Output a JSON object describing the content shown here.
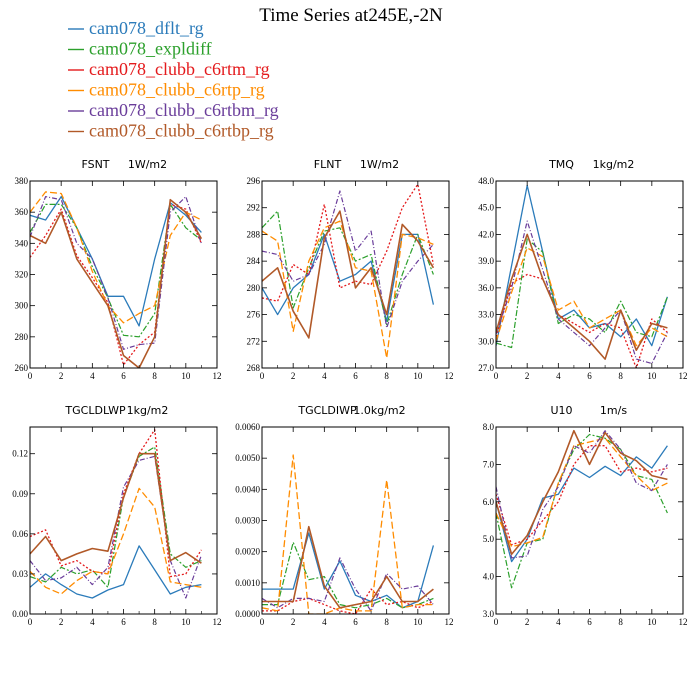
{
  "chart_data": {
    "title": "Time Series at245E,-2N",
    "legend": [
      {
        "name": "cam078_dflt_rg",
        "color": "#2b7bba"
      },
      {
        "name": "cam078_expldiff",
        "color": "#2ca02c"
      },
      {
        "name": "cam078_clubb_c6rtm_rg",
        "color": "#e41a1c"
      },
      {
        "name": "cam078_clubb_c6rtp_rg",
        "color": "#ff8c00"
      },
      {
        "name": "cam078_clubb_c6rtbm_rg",
        "color": "#6a3d9a"
      },
      {
        "name": "cam078_clubb_c6rtbp_rg",
        "color": "#b15928"
      }
    ],
    "panels": [
      {
        "type": "line",
        "var": "FSNT",
        "unit": "1W/m2",
        "x": [
          0,
          1,
          2,
          3,
          4,
          5,
          6,
          7,
          8,
          9,
          10,
          11
        ],
        "xlim": [
          0,
          12
        ],
        "xticks": [
          "0",
          "2",
          "4",
          "6",
          "8",
          "10",
          "12"
        ],
        "xtick_values": [
          0,
          2,
          4,
          6,
          8,
          10,
          12
        ],
        "ylim": [
          260,
          380
        ],
        "ytick_values": [
          260,
          280,
          300,
          320,
          340,
          360,
          380
        ],
        "yticks": [
          "260",
          "280",
          "300",
          "320",
          "340",
          "360",
          "380"
        ],
        "series": [
          {
            "name": "cam078_dflt_rg",
            "values": [
              358,
              355,
              370,
              350,
              330,
              306,
              306,
              287,
              330,
              366,
              358,
              347
            ]
          },
          {
            "name": "cam078_expldiff",
            "values": [
              347,
              365,
              365,
              350,
              325,
              305,
              281,
              280,
              295,
              365,
              350,
              342
            ]
          },
          {
            "name": "cam078_clubb_c6rtm_rg",
            "values": [
              331,
              345,
              362,
              332,
              318,
              302,
              262,
              275,
              283,
              365,
              362,
              340
            ]
          },
          {
            "name": "cam078_clubb_c6rtp_rg",
            "values": [
              360,
              373,
              372,
              350,
              322,
              300,
              289,
              295,
              300,
              345,
              360,
              355
            ]
          },
          {
            "name": "cam078_clubb_c6rtbm_rg",
            "values": [
              344,
              370,
              368,
              340,
              330,
              305,
              272,
              275,
              276,
              360,
              370,
              340
            ]
          },
          {
            "name": "cam078_clubb_c6rtbp_rg",
            "values": [
              345,
              340,
              360,
              330,
              315,
              300,
              268,
              260,
              280,
              368,
              360,
              343
            ]
          }
        ]
      },
      {
        "type": "line",
        "var": "FLNT",
        "unit": "1W/m2",
        "x": [
          0,
          1,
          2,
          3,
          4,
          5,
          6,
          7,
          8,
          9,
          10,
          11
        ],
        "xlim": [
          0,
          12
        ],
        "xticks": [
          "0",
          "2",
          "4",
          "6",
          "8",
          "10",
          "12"
        ],
        "xtick_values": [
          0,
          2,
          4,
          6,
          8,
          10,
          12
        ],
        "ylim": [
          268,
          296
        ],
        "ytick_values": [
          268,
          272,
          276,
          280,
          284,
          288,
          292,
          296
        ],
        "yticks": [
          "268",
          "272",
          "276",
          "280",
          "284",
          "288",
          "292",
          "296"
        ],
        "series": [
          {
            "name": "cam078_dflt_rg",
            "values": [
              280,
              276,
              280,
              282,
              288,
              281,
              282,
              284,
              275,
              288,
              288,
              277.5
            ]
          },
          {
            "name": "cam078_expldiff",
            "values": [
              289,
              291.5,
              277,
              283,
              288.5,
              289,
              284,
              285,
              274.5,
              282,
              288,
              282
            ]
          },
          {
            "name": "cam078_clubb_c6rtm_rg",
            "values": [
              278.5,
              278,
              283.5,
              282,
              292.5,
              280,
              281,
              280.5,
              285.5,
              292,
              295.5,
              283.5
            ]
          },
          {
            "name": "cam078_clubb_c6rtp_rg",
            "values": [
              288.5,
              287,
              273.5,
              284,
              289,
              290,
              283,
              282.5,
              269.5,
              288,
              287.5,
              286.5
            ]
          },
          {
            "name": "cam078_clubb_c6rtbm_rg",
            "values": [
              285.5,
              285,
              281,
              282,
              286.5,
              294.5,
              285.5,
              288.5,
              274,
              281,
              284,
              286.5
            ]
          },
          {
            "name": "cam078_clubb_c6rtbp_rg",
            "values": [
              281,
              283,
              276.5,
              272.5,
              287.5,
              291.5,
              280,
              283,
              276,
              289.5,
              287,
              283
            ]
          }
        ]
      },
      {
        "type": "line",
        "var": "TMQ",
        "unit": "1kg/m2",
        "x": [
          0,
          1,
          2,
          3,
          4,
          5,
          6,
          7,
          8,
          9,
          10,
          11
        ],
        "xlim": [
          0,
          12
        ],
        "xticks": [
          "0",
          "2",
          "4",
          "6",
          "8",
          "10",
          "12"
        ],
        "xtick_values": [
          0,
          2,
          4,
          6,
          8,
          10,
          12
        ],
        "ylim": [
          27.0,
          48.0
        ],
        "ytick_values": [
          27,
          30,
          33,
          36,
          39,
          42,
          45,
          48
        ],
        "yticks": [
          "27.0",
          "30.0",
          "33.0",
          "36.0",
          "39.0",
          "42.0",
          "45.0",
          "48.0"
        ],
        "series": [
          {
            "name": "cam078_dflt_rg",
            "values": [
              29.5,
              38.5,
              47.5,
              40.0,
              32.5,
              33.5,
              31.5,
              32.0,
              30.5,
              32.5,
              29.5,
              35.0
            ]
          },
          {
            "name": "cam078_expldiff",
            "values": [
              29.8,
              29.3,
              41.5,
              40.0,
              32.0,
              33.0,
              32.5,
              31.0,
              34.5,
              31.0,
              30.5,
              35.0
            ]
          },
          {
            "name": "cam078_clubb_c6rtm_rg",
            "values": [
              30.5,
              36.5,
              37.5,
              37.0,
              33.0,
              32.0,
              31.0,
              32.0,
              31.5,
              27.0,
              32.5,
              31.0
            ]
          },
          {
            "name": "cam078_clubb_c6rtp_rg",
            "values": [
              30.0,
              35.5,
              40.5,
              39.5,
              33.5,
              34.5,
              31.5,
              32.5,
              33.5,
              29.5,
              31.5,
              30.5
            ]
          },
          {
            "name": "cam078_clubb_c6rtbm_rg",
            "values": [
              30.8,
              36.0,
              43.5,
              38.0,
              32.5,
              31.0,
              29.5,
              31.5,
              33.5,
              28.0,
              27.5,
              31.0
            ]
          },
          {
            "name": "cam078_clubb_c6rtbp_rg",
            "values": [
              31.0,
              37.0,
              42.0,
              37.0,
              33.0,
              31.5,
              30.0,
              28.0,
              33.5,
              29.0,
              32.0,
              31.5
            ]
          }
        ]
      },
      {
        "type": "line",
        "var": "TGCLDLWP",
        "unit": "1kg/m2",
        "x": [
          0,
          1,
          2,
          3,
          4,
          5,
          6,
          7,
          8,
          9,
          10,
          11
        ],
        "xlim": [
          0,
          12
        ],
        "xticks": [
          "0",
          "2",
          "4",
          "6",
          "8",
          "10",
          "12"
        ],
        "xtick_values": [
          0,
          2,
          4,
          6,
          8,
          10,
          12
        ],
        "ylim": [
          0,
          0.14
        ],
        "ytick_values": [
          0,
          0.03,
          0.06,
          0.09,
          0.12
        ],
        "yticks": [
          "0.00",
          "0.03",
          "0.06",
          "0.09",
          "0.12"
        ],
        "series": [
          {
            "name": "cam078_dflt_rg",
            "values": [
              0.02,
              0.03,
              0.022,
              0.015,
              0.012,
              0.018,
              0.022,
              0.051,
              0.033,
              0.015,
              0.02,
              0.022
            ]
          },
          {
            "name": "cam078_expldiff",
            "values": [
              0.028,
              0.024,
              0.035,
              0.03,
              0.033,
              0.02,
              0.088,
              0.118,
              0.125,
              0.045,
              0.035,
              0.04
            ]
          },
          {
            "name": "cam078_clubb_c6rtm_rg",
            "values": [
              0.058,
              0.063,
              0.036,
              0.04,
              0.032,
              0.03,
              0.09,
              0.12,
              0.138,
              0.028,
              0.03,
              0.048
            ]
          },
          {
            "name": "cam078_clubb_c6rtp_rg",
            "values": [
              0.032,
              0.02,
              0.015,
              0.025,
              0.032,
              0.03,
              0.06,
              0.094,
              0.08,
              0.024,
              0.022,
              0.02
            ]
          },
          {
            "name": "cam078_clubb_c6rtbm_rg",
            "values": [
              0.04,
              0.025,
              0.027,
              0.035,
              0.022,
              0.035,
              0.095,
              0.115,
              0.118,
              0.04,
              0.012,
              0.044
            ]
          },
          {
            "name": "cam078_clubb_c6rtbp_rg",
            "values": [
              0.045,
              0.058,
              0.04,
              0.045,
              0.049,
              0.047,
              0.087,
              0.12,
              0.12,
              0.04,
              0.046,
              0.038
            ]
          }
        ]
      },
      {
        "type": "line",
        "var": "TGCLDIWP",
        "unit": "1.0kg/m2",
        "x": [
          0,
          1,
          2,
          3,
          4,
          5,
          6,
          7,
          8,
          9,
          10,
          11
        ],
        "xlim": [
          0,
          12
        ],
        "xticks": [
          "0",
          "2",
          "4",
          "6",
          "8",
          "10",
          "12"
        ],
        "xtick_values": [
          0,
          2,
          4,
          6,
          8,
          10,
          12
        ],
        "ylim": [
          0,
          0.006
        ],
        "ytick_values": [
          0,
          0.001,
          0.002,
          0.003,
          0.004,
          0.005,
          0.006
        ],
        "yticks": [
          "0.0000",
          "0.0010",
          "0.0020",
          "0.0030",
          "0.0040",
          "0.0050",
          "0.0060"
        ],
        "series": [
          {
            "name": "cam078_dflt_rg",
            "values": [
              0.0008,
              0.0008,
              0.0008,
              0.0026,
              0.0008,
              0.0017,
              0.0006,
              0.0004,
              0.0006,
              0.0002,
              0.0004,
              0.0022
            ]
          },
          {
            "name": "cam078_expldiff",
            "values": [
              0.0003,
              0.0003,
              0.0023,
              0.0011,
              0.0012,
              0.0003,
              0.0002,
              0.0003,
              0.0005,
              0.0002,
              0.0003,
              0.0005
            ]
          },
          {
            "name": "cam078_clubb_c6rtm_rg",
            "values": [
              0.0001,
              0.0001,
              0.0004,
              0.0005,
              0.0003,
              0.0001,
              0.0,
              0.0008,
              0.0003,
              0.0004,
              0.0002,
              0.0004
            ]
          },
          {
            "name": "cam078_clubb_c6rtp_rg",
            "values": [
              0.0002,
              0.0001,
              0.0051,
              0.0,
              0.0,
              0.0002,
              0.0001,
              0.0001,
              0.0043,
              0.0002,
              0.0003,
              0.0003
            ]
          },
          {
            "name": "cam078_clubb_c6rtbm_rg",
            "values": [
              0.0005,
              0.0002,
              0.0005,
              0.0005,
              0.0004,
              0.0018,
              0.0008,
              0.0001,
              0.0013,
              0.0008,
              0.0009,
              0.0003
            ]
          },
          {
            "name": "cam078_clubb_c6rtbp_rg",
            "values": [
              0.0004,
              0.0004,
              0.0004,
              0.0028,
              0.0009,
              0.0002,
              0.0003,
              0.0004,
              0.0012,
              0.0004,
              0.0004,
              0.0008
            ]
          }
        ]
      },
      {
        "type": "line",
        "var": "U10",
        "unit": "1m/s",
        "x": [
          0,
          1,
          2,
          3,
          4,
          5,
          6,
          7,
          8,
          9,
          10,
          11
        ],
        "xlim": [
          0,
          12
        ],
        "xticks": [
          "0",
          "2",
          "4",
          "6",
          "8",
          "10",
          "12"
        ],
        "xtick_values": [
          0,
          2,
          4,
          6,
          8,
          10,
          12
        ],
        "ylim": [
          3.0,
          8.0
        ],
        "ytick_values": [
          3,
          4,
          5,
          6,
          7,
          8
        ],
        "yticks": [
          "3.0",
          "4.0",
          "5.0",
          "6.0",
          "7.0",
          "8.0"
        ],
        "series": [
          {
            "name": "cam078_dflt_rg",
            "values": [
              6.0,
              4.4,
              5.0,
              6.1,
              6.2,
              6.9,
              6.65,
              6.95,
              6.7,
              7.2,
              6.9,
              7.5
            ]
          },
          {
            "name": "cam078_expldiff",
            "values": [
              5.7,
              3.7,
              4.9,
              5.0,
              6.5,
              7.4,
              7.8,
              7.7,
              7.4,
              6.7,
              6.6,
              5.7
            ]
          },
          {
            "name": "cam078_clubb_c6rtm_rg",
            "values": [
              6.2,
              4.85,
              5.0,
              5.5,
              6.0,
              7.0,
              7.5,
              7.5,
              6.8,
              6.9,
              6.8,
              6.9
            ]
          },
          {
            "name": "cam078_clubb_c6rtp_rg",
            "values": [
              5.7,
              4.8,
              4.9,
              5.05,
              6.5,
              7.5,
              7.6,
              7.7,
              7.2,
              6.7,
              6.3,
              6.5
            ]
          },
          {
            "name": "cam078_clubb_c6rtbm_rg",
            "values": [
              6.4,
              4.5,
              4.55,
              5.8,
              6.4,
              7.5,
              7.3,
              7.9,
              7.4,
              6.5,
              6.3,
              7.0
            ]
          },
          {
            "name": "cam078_clubb_c6rtbp_rg",
            "values": [
              6.0,
              4.6,
              5.1,
              6.0,
              6.8,
              7.9,
              7.0,
              7.85,
              7.3,
              7.1,
              6.7,
              6.6
            ]
          }
        ]
      }
    ]
  }
}
